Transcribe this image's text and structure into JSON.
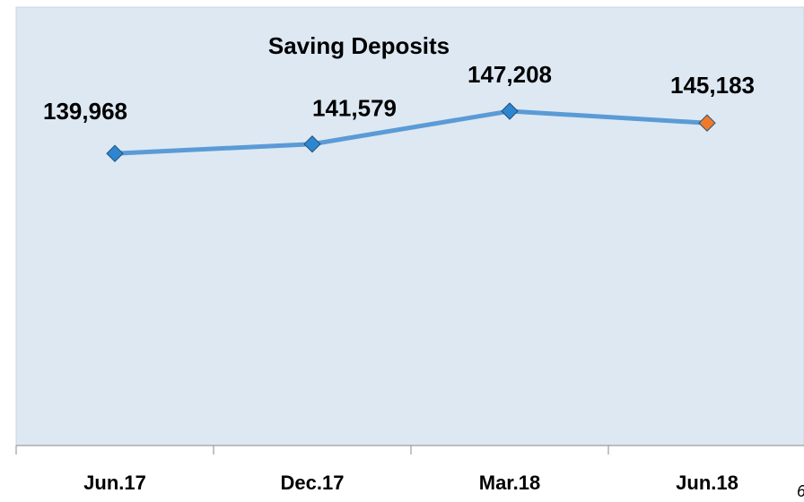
{
  "chart_data": {
    "type": "line",
    "title": "Saving Deposits",
    "categories": [
      "Jun.17",
      "Dec.17",
      "Mar.18",
      "Jun.18"
    ],
    "series": [
      {
        "name": "Saving Deposits",
        "color": "#5b9bd5",
        "values": [
          139968,
          141579,
          147208,
          145183
        ],
        "value_labels": [
          "139,968",
          "141,579",
          "147,208",
          "145,183"
        ],
        "marker_colors": [
          "#2e86d0",
          "#2e86d0",
          "#2e86d0",
          "#f07a28"
        ]
      }
    ],
    "ylim": [
      90000,
      165000
    ],
    "page_number": "6"
  }
}
